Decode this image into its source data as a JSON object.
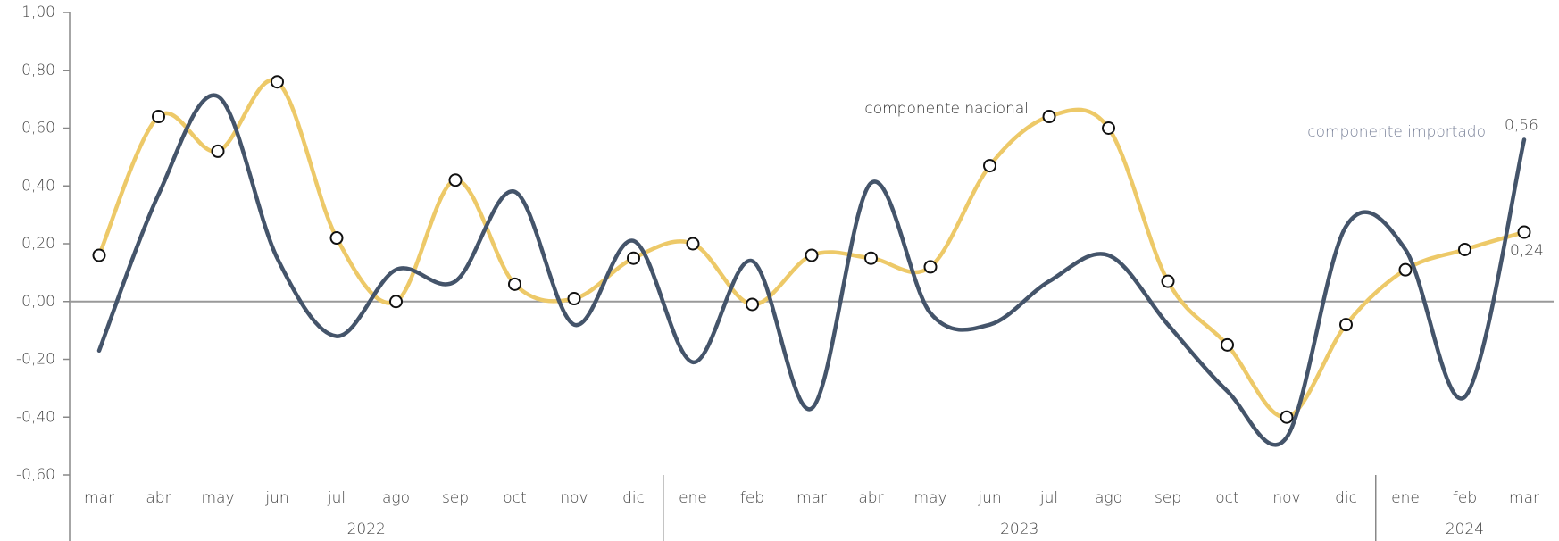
{
  "chart_data": {
    "type": "line",
    "categories": [
      "mar",
      "abr",
      "may",
      "jun",
      "jul",
      "ago",
      "sep",
      "oct",
      "nov",
      "dic",
      "ene",
      "feb",
      "mar",
      "abr",
      "may",
      "jun",
      "jul",
      "ago",
      "sep",
      "oct",
      "nov",
      "dic",
      "ene",
      "feb",
      "mar"
    ],
    "groups": [
      {
        "label": "2022",
        "span": 10
      },
      {
        "label": "2023",
        "span": 12
      },
      {
        "label": "2024",
        "span": 3
      }
    ],
    "series": [
      {
        "name": "componente nacional",
        "color": "#edc968",
        "markers": true,
        "values": [
          0.16,
          0.64,
          0.52,
          0.76,
          0.22,
          0.0,
          0.42,
          0.06,
          0.01,
          0.15,
          0.2,
          -0.01,
          0.16,
          0.15,
          0.12,
          0.47,
          0.64,
          0.6,
          0.07,
          -0.15,
          -0.4,
          -0.08,
          0.11,
          0.18,
          0.24
        ],
        "value_labels": [
          null,
          null,
          null,
          null,
          null,
          null,
          null,
          null,
          null,
          null,
          null,
          null,
          null,
          null,
          null,
          null,
          null,
          null,
          null,
          null,
          null,
          null,
          null,
          null,
          "0,24"
        ]
      },
      {
        "name": "componente importado",
        "color": "#44546a",
        "markers": false,
        "values": [
          -0.17,
          0.37,
          0.71,
          0.15,
          -0.12,
          0.11,
          0.07,
          0.38,
          -0.08,
          0.21,
          -0.21,
          0.14,
          -0.37,
          0.41,
          -0.04,
          -0.08,
          0.07,
          0.16,
          -0.08,
          -0.31,
          -0.47,
          0.26,
          0.18,
          -0.33,
          0.56
        ],
        "value_labels": [
          null,
          null,
          null,
          null,
          null,
          null,
          null,
          null,
          null,
          null,
          null,
          null,
          null,
          null,
          null,
          null,
          null,
          null,
          null,
          null,
          null,
          null,
          null,
          null,
          "0,56"
        ]
      }
    ],
    "ylim": [
      -0.6,
      1.0
    ],
    "yticks": [
      {
        "value": -0.6,
        "label": "-0,60"
      },
      {
        "value": -0.4,
        "label": "-0,40"
      },
      {
        "value": -0.2,
        "label": "-0,20"
      },
      {
        "value": 0,
        "label": "0,00"
      },
      {
        "value": 0.2,
        "label": "0,20"
      },
      {
        "value": 0.4,
        "label": "0,40"
      },
      {
        "value": 0.6,
        "label": "0,60"
      },
      {
        "value": 0.8,
        "label": "0,80"
      },
      {
        "value": 1.0,
        "label": "1,00"
      }
    ]
  }
}
